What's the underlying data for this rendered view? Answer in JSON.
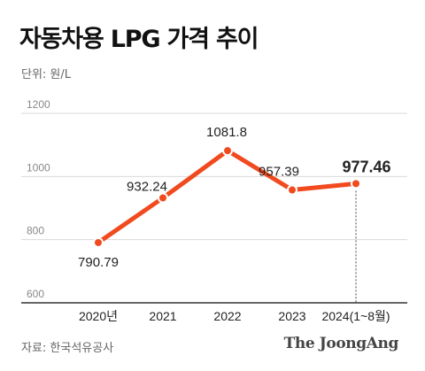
{
  "header": {
    "title": "자동차용 LPG 가격 추이",
    "unit": "단위: 원/L"
  },
  "footer": {
    "source": "자료: 한국석유공사",
    "logo": "The JoongAng"
  },
  "chart_data": {
    "type": "line",
    "title": "자동차용 LPG 가격 추이",
    "ylabel": "",
    "xlabel": "",
    "categories": [
      "2020년",
      "2021",
      "2022",
      "2023",
      "2024(1~8월)"
    ],
    "series": [
      {
        "values": [
          790.79,
          932.24,
          1081.8,
          957.39,
          977.46
        ],
        "labels": [
          "790.79",
          "932.24",
          "1081.8",
          "957.39",
          "977.46"
        ]
      }
    ],
    "ylim": [
      600,
      1200
    ],
    "yticks": [
      600,
      800,
      1000,
      1200
    ],
    "grid": true,
    "highlight_index": 4,
    "colors": {
      "line": "#f04a1e",
      "grid": "#d9d9d9",
      "axis": "#333333",
      "tick_text": "#888888",
      "label_text": "#222222"
    }
  }
}
